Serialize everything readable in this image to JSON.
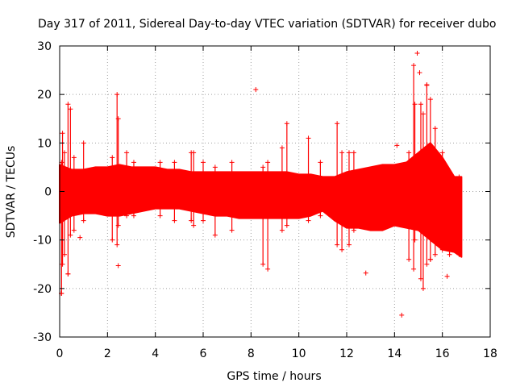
{
  "chart_data": {
    "type": "scatter",
    "title": "Day 317 of 2011, Sidereal Day-to-day VTEC variation (SDTVAR) for receiver dubo",
    "xlabel": "GPS time / hours",
    "ylabel": "SDTVAR / TECUs",
    "xlim": [
      0,
      18
    ],
    "ylim": [
      -30,
      30
    ],
    "xticks": [
      "0",
      "2",
      "4",
      "6",
      "8",
      "10",
      "12",
      "14",
      "16",
      "18"
    ],
    "yticks": [
      "-30",
      "-20",
      "-10",
      "0",
      "10",
      "20",
      "30"
    ],
    "grid": true,
    "marker": "+",
    "series_color": "#ff0000",
    "band": {
      "x": [
        0.0,
        0.5,
        1.0,
        1.5,
        2.0,
        2.5,
        3.0,
        3.5,
        4.0,
        4.5,
        5.0,
        5.5,
        6.0,
        6.5,
        7.0,
        7.5,
        8.0,
        8.5,
        9.0,
        9.5,
        10.0,
        10.5,
        11.0,
        11.5,
        12.0,
        12.5,
        13.0,
        13.5,
        14.0,
        14.5,
        15.0,
        15.5,
        16.0,
        16.5,
        16.8
      ],
      "upper": [
        5.5,
        4.5,
        4.5,
        5.0,
        5.0,
        5.5,
        5.0,
        5.0,
        5.0,
        4.5,
        4.5,
        4.0,
        4.0,
        4.0,
        4.0,
        4.0,
        4.0,
        4.0,
        4.0,
        4.0,
        3.5,
        3.5,
        3.0,
        3.0,
        4.0,
        4.5,
        5.0,
        5.5,
        5.5,
        6.0,
        8.0,
        10.0,
        7.0,
        3.0,
        3.0
      ],
      "lower": [
        -6.5,
        -5.0,
        -4.5,
        -4.5,
        -5.0,
        -5.0,
        -4.5,
        -4.0,
        -3.5,
        -3.5,
        -3.5,
        -4.0,
        -4.5,
        -5.0,
        -5.0,
        -5.5,
        -5.5,
        -5.5,
        -5.5,
        -5.5,
        -5.5,
        -5.0,
        -4.0,
        -6.0,
        -7.5,
        -7.5,
        -8.0,
        -8.0,
        -7.0,
        -7.5,
        -8.0,
        -10.0,
        -12.0,
        -12.5,
        -13.5
      ]
    },
    "spikes": [
      {
        "x": 0.08,
        "low": -21,
        "high": 6
      },
      {
        "x": 0.12,
        "low": -15,
        "high": 12
      },
      {
        "x": 0.2,
        "low": -13,
        "high": 8
      },
      {
        "x": 0.35,
        "low": -17,
        "high": 18
      },
      {
        "x": 0.45,
        "low": -9,
        "high": 17
      },
      {
        "x": 0.6,
        "low": -8,
        "high": 7
      },
      {
        "x": 1.0,
        "low": -6,
        "high": 10
      },
      {
        "x": 2.2,
        "low": -10,
        "high": 7
      },
      {
        "x": 2.4,
        "low": -11,
        "high": 20
      },
      {
        "x": 2.45,
        "low": -7,
        "high": 15
      },
      {
        "x": 2.8,
        "low": -5,
        "high": 8
      },
      {
        "x": 3.1,
        "low": -5,
        "high": 6
      },
      {
        "x": 4.2,
        "low": -5,
        "high": 6
      },
      {
        "x": 4.8,
        "low": -6,
        "high": 6
      },
      {
        "x": 5.5,
        "low": -6,
        "high": 8
      },
      {
        "x": 5.6,
        "low": -7,
        "high": 8
      },
      {
        "x": 6.0,
        "low": -6,
        "high": 6
      },
      {
        "x": 6.5,
        "low": -9,
        "high": 5
      },
      {
        "x": 7.2,
        "low": -8,
        "high": 6
      },
      {
        "x": 8.5,
        "low": -15,
        "high": 5
      },
      {
        "x": 8.7,
        "low": -16,
        "high": 6
      },
      {
        "x": 9.3,
        "low": -8,
        "high": 9
      },
      {
        "x": 9.5,
        "low": -7,
        "high": 14
      },
      {
        "x": 10.4,
        "low": -6,
        "high": 11
      },
      {
        "x": 10.9,
        "low": -5,
        "high": 6
      },
      {
        "x": 11.6,
        "low": -11,
        "high": 14
      },
      {
        "x": 11.8,
        "low": -12,
        "high": 8
      },
      {
        "x": 12.1,
        "low": -11,
        "high": 8
      },
      {
        "x": 12.3,
        "low": -8,
        "high": 8
      },
      {
        "x": 14.6,
        "low": -14,
        "high": 8
      },
      {
        "x": 14.8,
        "low": -16,
        "high": 26
      },
      {
        "x": 14.85,
        "low": -10,
        "high": 18
      },
      {
        "x": 15.1,
        "low": -18,
        "high": 18
      },
      {
        "x": 15.2,
        "low": -20,
        "high": 16
      },
      {
        "x": 15.35,
        "low": -15,
        "high": 22
      },
      {
        "x": 15.5,
        "low": -14,
        "high": 19
      },
      {
        "x": 15.7,
        "low": -13,
        "high": 13
      },
      {
        "x": 16.0,
        "low": -12,
        "high": 8
      },
      {
        "x": 16.3,
        "low": -13,
        "high": 4
      },
      {
        "x": 16.7,
        "low": -13,
        "high": 3
      }
    ],
    "outliers": [
      {
        "x": 0.07,
        "y": -21
      },
      {
        "x": 0.35,
        "y": -17
      },
      {
        "x": 0.85,
        "y": -9.5
      },
      {
        "x": 2.45,
        "y": -15.3
      },
      {
        "x": 8.2,
        "y": 21
      },
      {
        "x": 12.8,
        "y": -16.8
      },
      {
        "x": 14.1,
        "y": 9.5
      },
      {
        "x": 14.3,
        "y": -25.5
      },
      {
        "x": 14.95,
        "y": 28.5
      },
      {
        "x": 15.05,
        "y": 24.5
      },
      {
        "x": 15.35,
        "y": 21.9
      },
      {
        "x": 16.2,
        "y": -17.5
      },
      {
        "x": 15.5,
        "y": -14
      }
    ]
  }
}
